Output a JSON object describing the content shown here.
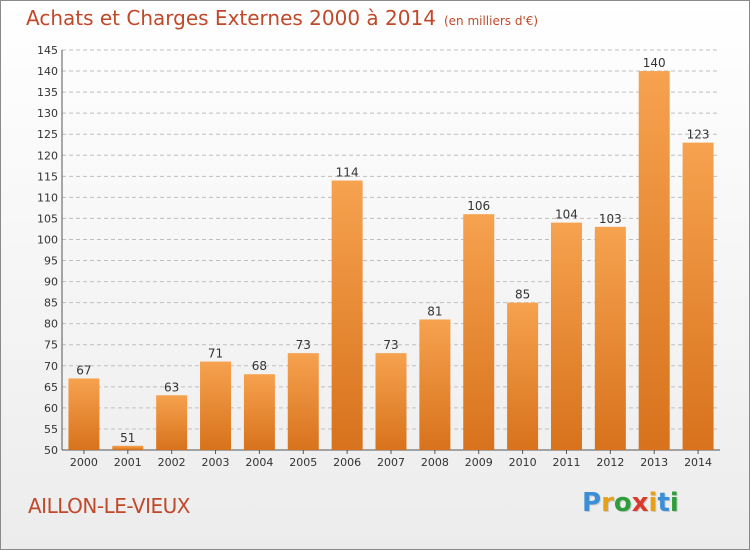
{
  "header": {
    "title": "Achats et Charges Externes 2000 à 2014",
    "subtitle": "(en milliers d'€)"
  },
  "footer": {
    "commune": "AILLON-LE-VIEUX",
    "brand_letters": [
      {
        "ch": "P",
        "color": "#3a8fd6"
      },
      {
        "ch": "r",
        "color": "#e6a11a"
      },
      {
        "ch": "o",
        "color": "#2e9e3a"
      },
      {
        "ch": "x",
        "color": "#d93a2b"
      },
      {
        "ch": "i",
        "color": "#e6a11a"
      },
      {
        "ch": "t",
        "color": "#3a8fd6"
      },
      {
        "ch": "i",
        "color": "#2e9e3a"
      }
    ]
  },
  "colors": {
    "bar_top": "#f6a24f",
    "bar_bottom": "#d8721c",
    "grid": "#bfbfbf",
    "text": "#333333",
    "accent": "#c0492a"
  },
  "chart_data": {
    "type": "bar",
    "title": "Achats et Charges Externes 2000 à 2014",
    "subtitle": "(en milliers d'€)",
    "categories": [
      "2000",
      "2001",
      "2002",
      "2003",
      "2004",
      "2005",
      "2006",
      "2007",
      "2008",
      "2009",
      "2010",
      "2011",
      "2012",
      "2013",
      "2014"
    ],
    "values": [
      67,
      51,
      63,
      71,
      68,
      73,
      114,
      73,
      81,
      106,
      85,
      104,
      103,
      140,
      123
    ],
    "ylim": [
      50,
      145
    ],
    "yticks": [
      50,
      55,
      60,
      65,
      70,
      75,
      80,
      85,
      90,
      95,
      100,
      105,
      110,
      115,
      120,
      125,
      130,
      135,
      140,
      145
    ],
    "grid": true,
    "data_labels": true
  }
}
